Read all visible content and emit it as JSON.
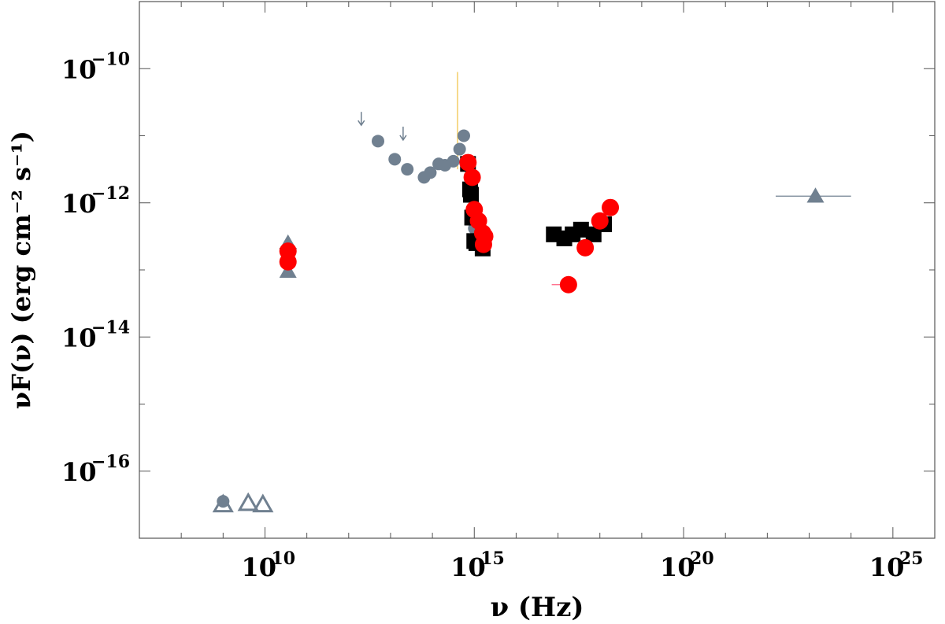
{
  "chart_data": {
    "type": "scatter",
    "title": "",
    "xlabel": "ν (Hz)",
    "ylabel": "νF(ν) (erg cm⁻² s⁻¹)",
    "xscale": "log",
    "yscale": "log",
    "xlim_log10": [
      7,
      26
    ],
    "ylim_log10": [
      -17,
      -9
    ],
    "grid": false,
    "legend": "none",
    "x_tick_labels": [
      {
        "base": "10",
        "exp": "10",
        "value": 10
      },
      {
        "base": "10",
        "exp": "15",
        "value": 15
      },
      {
        "base": "10",
        "exp": "20",
        "value": 20
      },
      {
        "base": "10",
        "exp": "25",
        "value": 25
      }
    ],
    "y_tick_labels": [
      {
        "base": "10",
        "exp": "−10",
        "value": -10
      },
      {
        "base": "10",
        "exp": "−12",
        "value": -12
      },
      {
        "base": "10",
        "exp": "−14",
        "value": -14
      },
      {
        "base": "10",
        "exp": "−16",
        "value": -16
      }
    ],
    "colors": {
      "archival": "#708090",
      "red": "#ff0000",
      "black": "#000000",
      "errbar_orange": "#f0c040",
      "errbar_red": "#ff6080"
    },
    "series": [
      {
        "marker": "circle",
        "color": "#708090",
        "points": [
          {
            "x": 9.0,
            "y": -16.45
          },
          {
            "x": 12.7,
            "y": -11.08
          },
          {
            "x": 13.1,
            "y": -11.35
          },
          {
            "x": 13.4,
            "y": -11.5
          },
          {
            "x": 13.8,
            "y": -11.62
          },
          {
            "x": 13.95,
            "y": -11.55
          },
          {
            "x": 14.15,
            "y": -11.42
          },
          {
            "x": 14.3,
            "y": -11.44
          },
          {
            "x": 14.5,
            "y": -11.38
          },
          {
            "x": 14.65,
            "y": -11.2
          },
          {
            "x": 14.75,
            "y": -11.0
          },
          {
            "x": 15.0,
            "y": -12.38
          }
        ]
      },
      {
        "marker": "arrow-down",
        "color": "#708090",
        "points": [
          {
            "x": 12.3,
            "y": -10.75
          },
          {
            "x": 13.3,
            "y": -10.97
          }
        ]
      },
      {
        "marker": "triangle-up",
        "color": "#708090",
        "points": [
          {
            "x": 10.55,
            "y": -12.6
          },
          {
            "x": 10.55,
            "y": -13.02
          },
          {
            "x": 23.15,
            "y": -11.9
          }
        ]
      },
      {
        "marker": "triangle-up-open",
        "color": "#708090",
        "points": [
          {
            "x": 9.0,
            "y": -16.5
          },
          {
            "x": 9.6,
            "y": -16.48
          },
          {
            "x": 9.95,
            "y": -16.5
          }
        ]
      },
      {
        "marker": "triangle-down",
        "color": "#000000",
        "points": [
          {
            "x": 10.55,
            "y": -12.77
          }
        ]
      },
      {
        "marker": "square",
        "color": "#000000",
        "points": [
          {
            "x": 14.85,
            "y": -11.42
          },
          {
            "x": 14.9,
            "y": -11.8
          },
          {
            "x": 14.92,
            "y": -11.88
          },
          {
            "x": 14.95,
            "y": -12.22
          },
          {
            "x": 15.0,
            "y": -12.57
          },
          {
            "x": 15.05,
            "y": -12.6
          },
          {
            "x": 15.2,
            "y": -12.68
          },
          {
            "x": 16.9,
            "y": -12.47
          },
          {
            "x": 17.15,
            "y": -12.53
          },
          {
            "x": 17.35,
            "y": -12.47
          },
          {
            "x": 17.55,
            "y": -12.4
          },
          {
            "x": 17.85,
            "y": -12.47
          },
          {
            "x": 18.1,
            "y": -12.32
          }
        ]
      },
      {
        "marker": "circle",
        "color": "#ff0000",
        "points": [
          {
            "x": 10.55,
            "y": -12.72
          },
          {
            "x": 10.55,
            "y": -12.88
          },
          {
            "x": 14.85,
            "y": -11.4
          },
          {
            "x": 14.95,
            "y": -11.62
          },
          {
            "x": 15.0,
            "y": -12.1
          },
          {
            "x": 15.1,
            "y": -12.27
          },
          {
            "x": 15.2,
            "y": -12.45
          },
          {
            "x": 15.25,
            "y": -12.5
          },
          {
            "x": 15.22,
            "y": -12.62
          },
          {
            "x": 17.25,
            "y": -13.22
          },
          {
            "x": 17.65,
            "y": -12.67
          },
          {
            "x": 18.0,
            "y": -12.27
          },
          {
            "x": 18.25,
            "y": -12.07
          }
        ]
      }
    ],
    "error_bars": [
      {
        "x": 14.6,
        "y_low": -11.5,
        "y_high": -10.05,
        "color": "#f0c040",
        "orientation": "vertical"
      },
      {
        "x": 15.0,
        "y_low": -12.55,
        "y_high": -11.55,
        "color": "#f0c040",
        "orientation": "vertical"
      },
      {
        "y": -13.22,
        "x_low": 16.85,
        "x_high": 17.4,
        "color": "#ff6080",
        "orientation": "horizontal"
      },
      {
        "y": -11.9,
        "x_low": 22.2,
        "x_high": 24.0,
        "color": "#708090",
        "orientation": "horizontal"
      }
    ]
  }
}
